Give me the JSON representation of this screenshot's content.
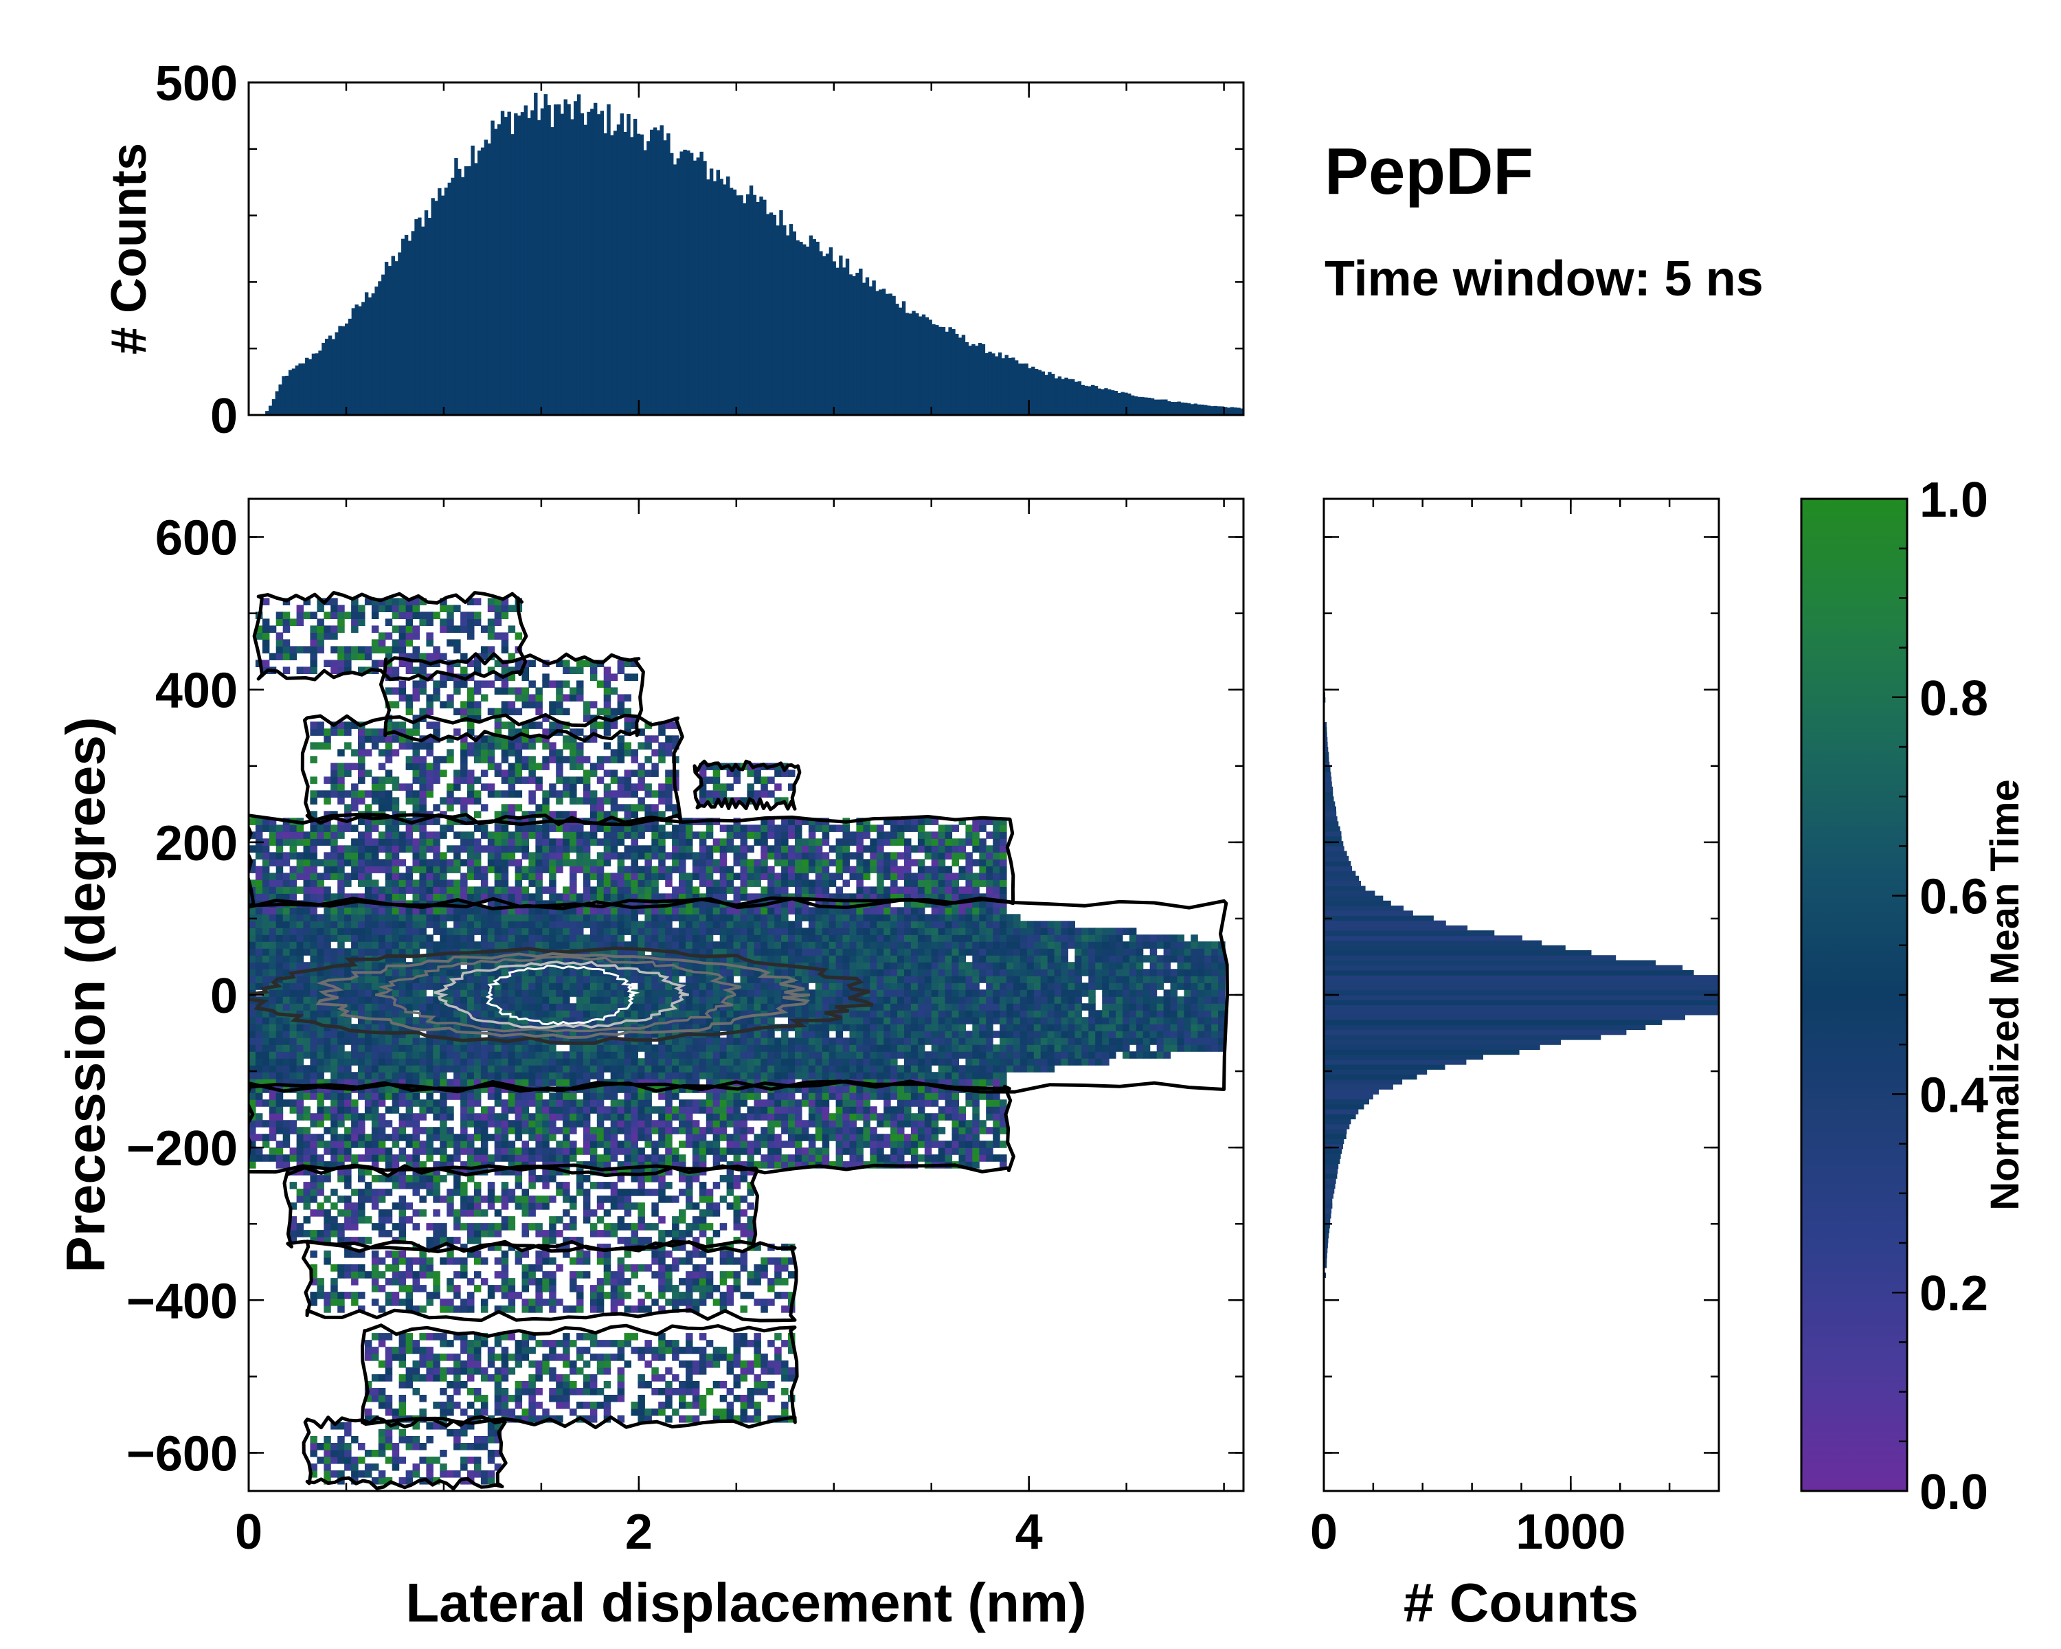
{
  "annotation": {
    "title": "PepDF",
    "subtitle": "Time window: 5 ns"
  },
  "colors": {
    "bar": "#0b3d6b",
    "contour_outer": "#000000",
    "contour_inner": "#2b2b2b",
    "contour_mid": "#6e6e6e",
    "contour_light": "#bdbdbd",
    "colormap": [
      "#6a2d9e",
      "#4a3b9b",
      "#2e3f8c",
      "#1f3f78",
      "#0e3d66",
      "#15526a",
      "#1b6a5c",
      "#217f43",
      "#228b22"
    ]
  },
  "chart_data": [
    {
      "id": "top-histogram",
      "type": "bar",
      "xlabel": "",
      "ylabel": "# Counts",
      "xlim": [
        0,
        5.1
      ],
      "ylim": [
        0,
        500
      ],
      "yticks": [
        0,
        500
      ],
      "shape": {
        "kind": "skewed",
        "start": 0.08,
        "peak": 1.5,
        "peak_value": 460,
        "rise": 0.65,
        "fall": 1.3,
        "bins": 300
      }
    },
    {
      "id": "main-heatmap",
      "type": "heatmap",
      "xlabel": "Lateral displacement (nm)",
      "ylabel": "Precession (degrees)",
      "xlim": [
        0,
        5.1
      ],
      "ylim": [
        -650,
        650
      ],
      "xticks": [
        0,
        2,
        4
      ],
      "yticks": [
        -600,
        -400,
        -200,
        0,
        200,
        400,
        600
      ],
      "ytick_labels": [
        "−600",
        "−400",
        "−200",
        "0",
        "200",
        "400",
        "600"
      ],
      "core": {
        "x_center": 1.6,
        "x_halfwidth": 1.55,
        "y_halfwidth": 60
      },
      "clusters": [
        {
          "x": [
            0.05,
            1.4
          ],
          "y": [
            420,
            520
          ]
        },
        {
          "x": [
            0.7,
            2.0
          ],
          "y": [
            340,
            440
          ]
        },
        {
          "x": [
            0.3,
            2.2
          ],
          "y": [
            230,
            360
          ]
        },
        {
          "x": [
            2.3,
            2.8
          ],
          "y": [
            250,
            300
          ]
        },
        {
          "x": [
            0.0,
            3.9
          ],
          "y": [
            120,
            230
          ]
        },
        {
          "x": [
            0.0,
            5.0
          ],
          "y": [
            -120,
            120
          ]
        },
        {
          "x": [
            0.0,
            3.9
          ],
          "y": [
            -230,
            -120
          ]
        },
        {
          "x": [
            0.2,
            2.6
          ],
          "y": [
            -330,
            -230
          ]
        },
        {
          "x": [
            0.3,
            2.8
          ],
          "y": [
            -420,
            -330
          ]
        },
        {
          "x": [
            0.6,
            2.8
          ],
          "y": [
            -560,
            -440
          ]
        },
        {
          "x": [
            0.3,
            1.3
          ],
          "y": [
            -640,
            -560
          ]
        }
      ]
    },
    {
      "id": "side-histogram",
      "type": "bar",
      "orientation": "horizontal",
      "xlabel": "# Counts",
      "ylabel": "",
      "xlim": [
        0,
        1600
      ],
      "ylim": [
        -650,
        650
      ],
      "xticks": [
        0,
        1000
      ],
      "shape": {
        "kind": "gaussian",
        "mean": 0,
        "peak_value": 1530,
        "sigma": 55,
        "bins": 200
      }
    },
    {
      "id": "colorbar",
      "type": "colorbar",
      "label": "Normalized Mean Time",
      "range": [
        0,
        1
      ],
      "ticks": [
        0.0,
        0.2,
        0.4,
        0.6,
        0.8,
        1.0
      ],
      "tick_labels": [
        "0.0",
        "0.2",
        "0.4",
        "0.6",
        "0.8",
        "1.0"
      ]
    }
  ]
}
